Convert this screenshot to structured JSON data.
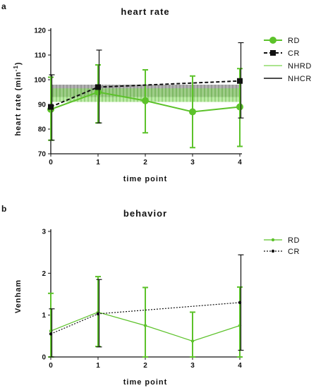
{
  "panels": {
    "a": {
      "letter": "a"
    },
    "b": {
      "letter": "b"
    }
  },
  "chart_data": [
    {
      "type": "line",
      "title": "heart rate",
      "xlabel": "time point",
      "ylabel": "heart rate (min",
      "ylabel_sup": "-1",
      "ylabel_close": ")",
      "x": [
        0,
        1,
        2,
        3,
        4
      ],
      "xticks": [
        "0",
        "1",
        "2",
        "3",
        "4"
      ],
      "yticks": [
        "70",
        "80",
        "90",
        "100",
        "110",
        "120"
      ],
      "xlim": [
        0,
        4
      ],
      "ylim": [
        70,
        120
      ],
      "grid": false,
      "legend_position": "right",
      "colors": {
        "rd": "#5cc22a",
        "cr": "#111111",
        "nhrd": "#8fdc6a",
        "nhcr": "#111111"
      },
      "series": [
        {
          "name": "RD",
          "style": "solid-circle",
          "values": [
            88,
            95,
            91.5,
            87,
            89
          ],
          "err_low": [
            75.5,
            82.5,
            78.5,
            72.5,
            73
          ],
          "err_high": [
            101,
            106,
            104,
            101.5,
            104.5
          ]
        },
        {
          "name": "CR",
          "style": "dashed-square",
          "values": [
            89,
            97,
            null,
            null,
            99.5
          ],
          "err_low": [
            75.5,
            82.5,
            null,
            null,
            84.5
          ],
          "err_high": [
            102,
            112,
            null,
            null,
            115
          ]
        }
      ],
      "bands": [
        {
          "name": "NHRD",
          "low": 91,
          "high": 96.5
        },
        {
          "name": "NHCR",
          "low": 93,
          "high": 98
        }
      ]
    },
    {
      "type": "line",
      "title": "behavior",
      "xlabel": "time point",
      "ylabel": "Venham",
      "x": [
        0,
        1,
        2,
        3,
        4
      ],
      "xticks": [
        "0",
        "1",
        "2",
        "3",
        "4"
      ],
      "yticks": [
        "0",
        "1",
        "2",
        "3"
      ],
      "xlim": [
        0,
        4
      ],
      "ylim": [
        0,
        3
      ],
      "grid": false,
      "legend_position": "right",
      "colors": {
        "rd": "#5cc22a",
        "cr": "#111111"
      },
      "series": [
        {
          "name": "RD",
          "style": "solid-dot",
          "values": [
            0.62,
            1.07,
            0.75,
            0.38,
            0.75
          ],
          "err_low": [
            0,
            0.25,
            0,
            0,
            0
          ],
          "err_high": [
            1.52,
            1.92,
            1.66,
            1.07,
            1.67
          ]
        },
        {
          "name": "CR",
          "style": "dotted-square",
          "values": [
            0.55,
            1.03,
            null,
            null,
            1.3
          ],
          "err_low": [
            0,
            0.24,
            null,
            null,
            0.16
          ],
          "err_high": [
            1.15,
            1.85,
            null,
            null,
            2.44
          ]
        }
      ]
    }
  ]
}
